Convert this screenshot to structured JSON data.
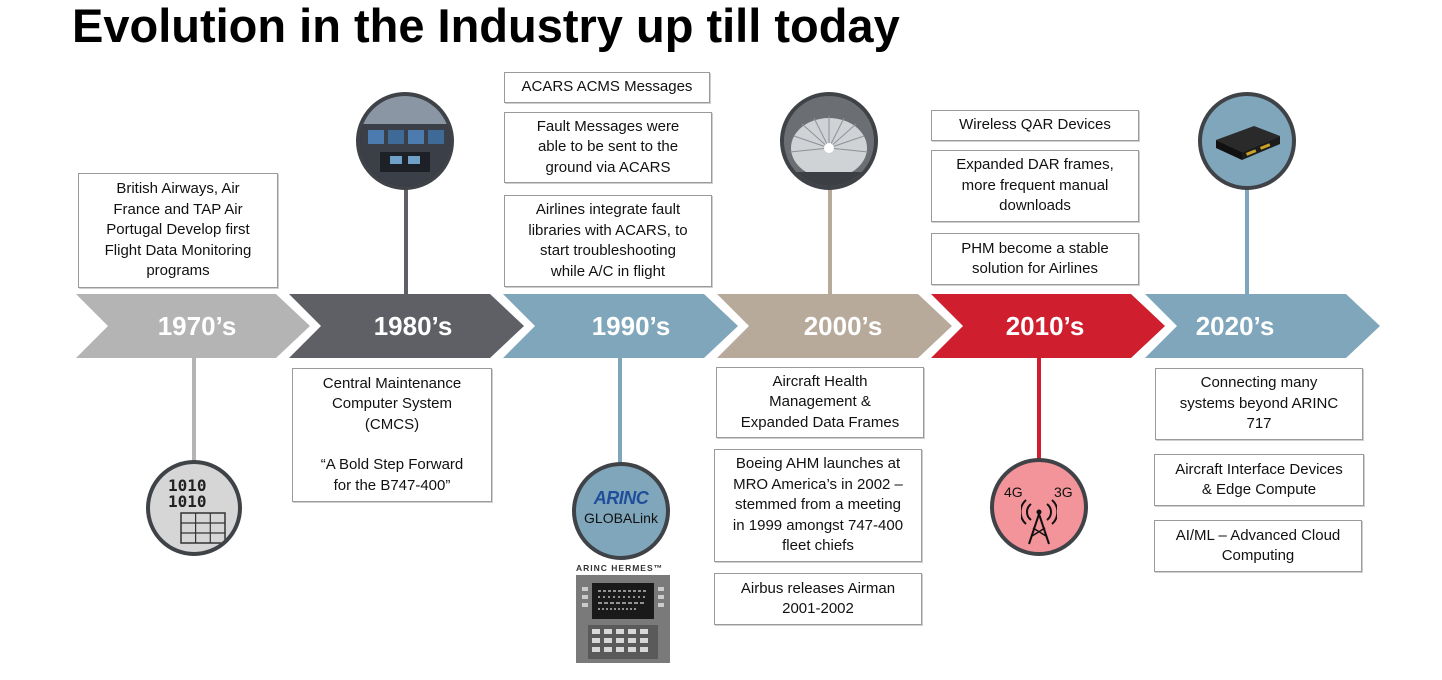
{
  "title": "Evolution in the Industry up till today",
  "colors": {
    "s1970": "#b4b4b4",
    "s1980": "#5f6065",
    "s1990": "#7fa6bb",
    "s2000": "#b8aa9b",
    "s2010": "#cf1e2d",
    "s2020": "#7fa6bb"
  },
  "eras": [
    {
      "label": "1970’s"
    },
    {
      "label": "1980’s"
    },
    {
      "label": "1990’s"
    },
    {
      "label": "2000’s"
    },
    {
      "label": "2010’s"
    },
    {
      "label": "2020’s"
    }
  ],
  "boxes": {
    "b1970": [
      "British Airways, Air",
      "France and TAP Air",
      "Portugal Develop first",
      "Flight Data Monitoring",
      "programs"
    ],
    "b1980": [
      "Central Maintenance",
      "Computer System",
      "(CMCS)"
    ],
    "b1980_quote": [
      "“A Bold Step Forward",
      "for the B747-400”"
    ],
    "b1990_1": [
      "ACARS ACMS Messages"
    ],
    "b1990_2": [
      "Fault Messages were",
      "able to be sent to the",
      "ground via ACARS"
    ],
    "b1990_3": [
      "Airlines integrate fault",
      "libraries with ACARS, to",
      "start troubleshooting",
      "while A/C in flight"
    ],
    "b2000_1": [
      "Aircraft Health",
      "Management &",
      "Expanded Data Frames"
    ],
    "b2000_2": [
      "Boeing AHM launches at",
      "MRO America’s in 2002 –",
      "stemmed from a meeting",
      "in 1999 amongst 747-400",
      "fleet chiefs"
    ],
    "b2000_3": [
      "Airbus releases Airman",
      "2001-2002"
    ],
    "b2010_1": [
      "Wireless QAR Devices"
    ],
    "b2010_2": [
      "Expanded DAR frames,",
      "more frequent manual",
      "downloads"
    ],
    "b2010_3": [
      "PHM become a stable",
      "solution for Airlines"
    ],
    "b2020_1": [
      "Connecting many",
      "systems beyond ARINC",
      "717"
    ],
    "b2020_2": [
      "Aircraft Interface Devices",
      "& Edge Compute"
    ],
    "b2020_3": [
      "AI/ML – Advanced Cloud",
      "Computing"
    ]
  },
  "icons": {
    "binary_1": "1010",
    "binary_2": "1010",
    "arinc_logo": "ARINC",
    "arinc_sub": "GLOBALink",
    "hermes_label": "ARINC HERMES™",
    "net_4g": "4G",
    "net_3g": "3G"
  }
}
